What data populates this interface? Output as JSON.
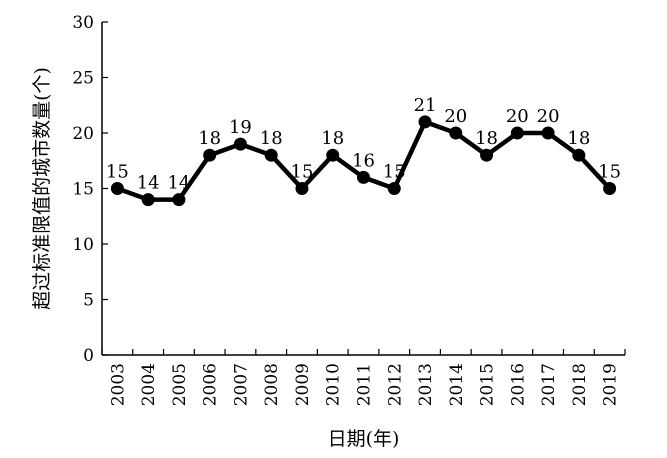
{
  "chart_data": {
    "type": "line",
    "title": "",
    "xlabel": "日期(年)",
    "ylabel": "超过标准限值的城市数量(个)",
    "ylim": [
      0,
      30
    ],
    "yticks": [
      0,
      5,
      10,
      15,
      20,
      25,
      30
    ],
    "grid": false,
    "legend": "none",
    "categories": [
      "2003",
      "2004",
      "2005",
      "2006",
      "2007",
      "2008",
      "2009",
      "2010",
      "2011",
      "2012",
      "2013",
      "2014",
      "2015",
      "2016",
      "2017",
      "2018",
      "2019"
    ],
    "series": [
      {
        "values": [
          15,
          14,
          14,
          18,
          19,
          18,
          15,
          18,
          16,
          15,
          21,
          20,
          18,
          20,
          20,
          18,
          15
        ],
        "data_labels": [
          "15",
          "14",
          "14",
          "18",
          "19",
          "18",
          "15",
          "18",
          "16",
          "15",
          "21",
          "20",
          "18",
          "20",
          "20",
          "18",
          "15"
        ],
        "color": "#000000"
      }
    ]
  }
}
